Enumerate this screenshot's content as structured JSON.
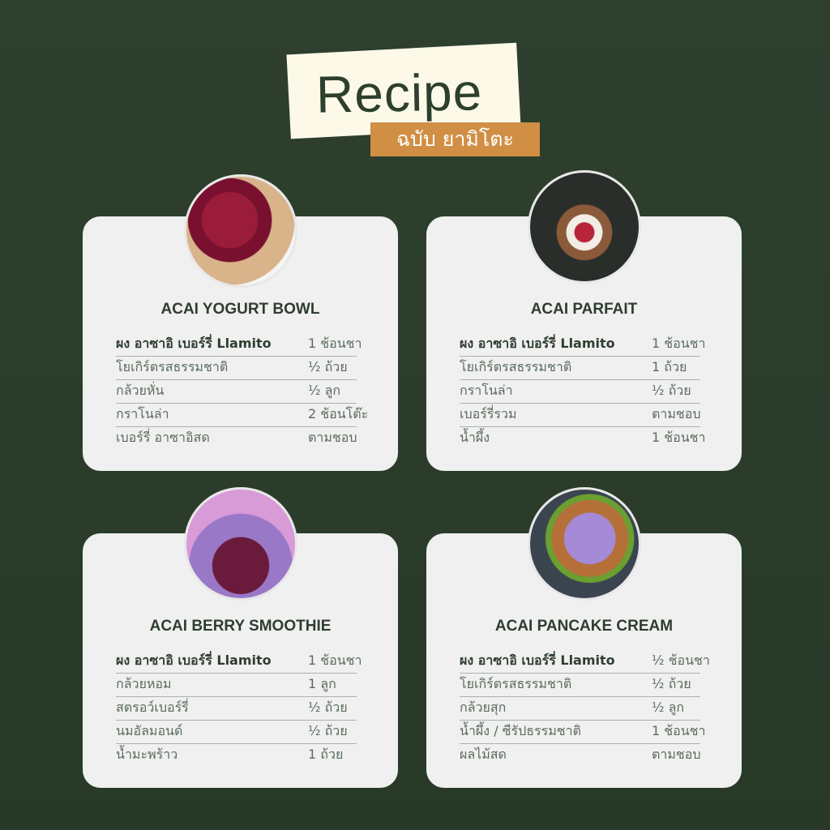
{
  "header": {
    "title": "Recipe",
    "subtitle": "ฉบับ ยามิโตะ"
  },
  "colors": {
    "background": "#2e3f2e",
    "card": "#f0f0f0",
    "accent": "#d18f45",
    "title_box": "#fcf9e8"
  },
  "recipes": [
    {
      "title": "ACAI YOGURT BOWL",
      "image": "acai-bowl-photo",
      "ingredients": [
        {
          "name": "ผง อาซาอิ เบอร์รี่ Llamito",
          "qty": "1 ช้อนชา"
        },
        {
          "name": "โยเกิร์ตรสธรรมชาติ",
          "qty": "½ ถ้วย"
        },
        {
          "name": "กล้วยหั่น",
          "qty": "½ ลูก"
        },
        {
          "name": "กราโนล่า",
          "qty": "2 ช้อนโต๊ะ"
        },
        {
          "name": "เบอร์รี่ อาซาอิสด",
          "qty": "ตามชอบ"
        }
      ]
    },
    {
      "title": "ACAI PARFAIT",
      "image": "parfait-photo",
      "ingredients": [
        {
          "name": "ผง อาซาอิ เบอร์รี่ Llamito",
          "qty": "1 ช้อนชา"
        },
        {
          "name": "โยเกิร์ตรสธรรมชาติ",
          "qty": "1 ถ้วย"
        },
        {
          "name": "กราโนล่า",
          "qty": "½ ถ้วย"
        },
        {
          "name": "เบอร์รี่รวม",
          "qty": "ตามชอบ"
        },
        {
          "name": "น้ำผึ้ง",
          "qty": "1 ช้อนชา"
        }
      ]
    },
    {
      "title": "ACAI BERRY SMOOTHIE",
      "image": "smoothie-photo",
      "ingredients": [
        {
          "name": "ผง อาซาอิ เบอร์รี่ Llamito",
          "qty": "1 ช้อนชา"
        },
        {
          "name": "กล้วยหอม",
          "qty": "1 ลูก"
        },
        {
          "name": "สตรอว์เบอร์รี่",
          "qty": "½ ถ้วย"
        },
        {
          "name": "นมอัลมอนด์",
          "qty": "½ ถ้วย"
        },
        {
          "name": "น้ำมะพร้าว",
          "qty": "1 ถ้วย"
        }
      ]
    },
    {
      "title": "ACAI PANCAKE CREAM",
      "image": "pancake-photo",
      "ingredients": [
        {
          "name": "ผง อาซาอิ เบอร์รี่ Llamito",
          "qty": "½ ช้อนชา"
        },
        {
          "name": "โยเกิร์ตรสธรรมชาติ",
          "qty": "½ ถ้วย"
        },
        {
          "name": "กล้วยสุก",
          "qty": "½ ลูก"
        },
        {
          "name": "น้ำผึ้ง / ซีรัปธรรมชาติ",
          "qty": "1 ช้อนชา"
        },
        {
          "name": "ผลไม้สด",
          "qty": "ตามชอบ"
        }
      ]
    }
  ]
}
